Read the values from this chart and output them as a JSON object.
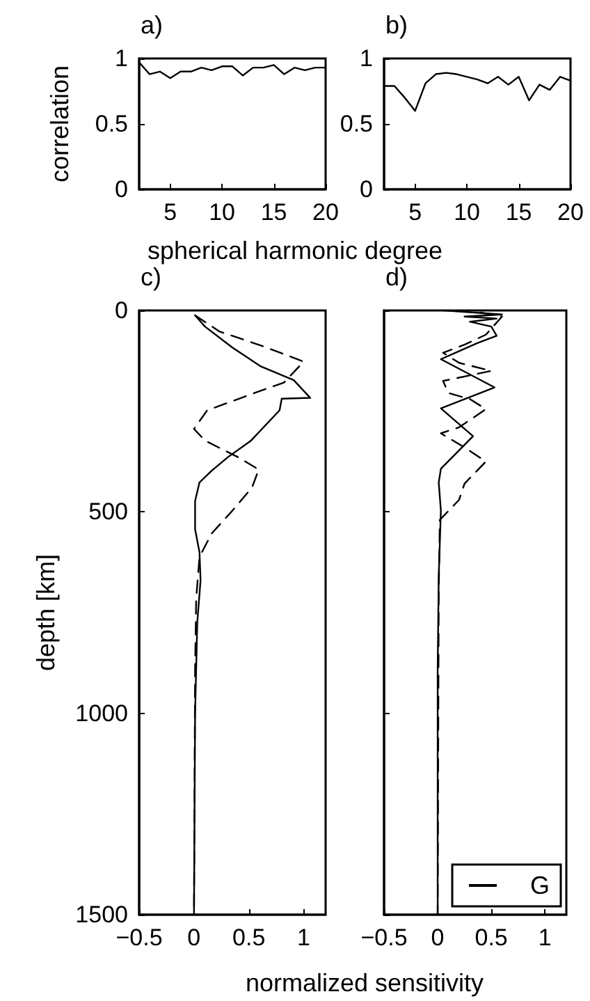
{
  "chart_data": [
    {
      "type": "line",
      "title": "a)",
      "ylabel": "correlation",
      "xlabel": "spherical harmonic degree",
      "xlim": [
        2,
        20
      ],
      "xticks": [
        5,
        10,
        15,
        20
      ],
      "ylim": [
        0,
        1
      ],
      "yticks": [
        0,
        0.5,
        1
      ],
      "grid": false,
      "legend": false,
      "marker": "none",
      "series": [
        {
          "color": "#000000",
          "x": [
            2,
            3,
            4,
            5,
            6,
            7,
            8,
            9,
            10,
            11,
            12,
            13,
            14,
            15,
            16,
            17,
            18,
            19,
            20
          ],
          "values": [
            0.97,
            0.88,
            0.9,
            0.85,
            0.9,
            0.9,
            0.93,
            0.91,
            0.94,
            0.94,
            0.87,
            0.93,
            0.93,
            0.95,
            0.88,
            0.93,
            0.91,
            0.93,
            0.93
          ]
        }
      ]
    },
    {
      "type": "line",
      "title": "b)",
      "xlim": [
        2,
        20
      ],
      "xticks": [
        5,
        10,
        15,
        20
      ],
      "ylim": [
        0,
        1
      ],
      "yticks": [
        0,
        0.5,
        1
      ],
      "grid": false,
      "legend": false,
      "marker": "none",
      "series": [
        {
          "color": "#000000",
          "x": [
            2,
            3,
            4,
            5,
            6,
            7,
            8,
            9,
            10,
            11,
            12,
            13,
            14,
            15,
            16,
            17,
            18,
            19,
            20
          ],
          "values": [
            0.79,
            0.79,
            0.7,
            0.6,
            0.81,
            0.88,
            0.89,
            0.88,
            0.86,
            0.84,
            0.81,
            0.86,
            0.8,
            0.86,
            0.68,
            0.8,
            0.76,
            0.86,
            0.83
          ]
        }
      ]
    },
    {
      "type": "line",
      "title": "c)",
      "ylabel": "depth [km]",
      "xlabel": "normalized sensitivity",
      "xlim": [
        -0.5,
        1.2
      ],
      "xticks": [
        {
          "value": -0.5,
          "label": "−0.5"
        },
        0,
        0.5,
        1
      ],
      "ylim": [
        1500,
        0
      ],
      "yticks": [
        0,
        500,
        1000,
        1500
      ],
      "grid": false,
      "legend": false,
      "marker": "none",
      "series": [
        {
          "color": "#000000",
          "line_style": "solid",
          "x": [
            0.01,
            0.1,
            0.35,
            0.61,
            0.91,
            1.06,
            0.8,
            0.78,
            0.52,
            0.31,
            0.16,
            0.05,
            0.01,
            0.01,
            0.05,
            0.06,
            0.03,
            0.01,
            0
          ],
          "values": [
            12,
            40,
            92,
            139,
            173,
            217,
            219,
            248,
            323,
            364,
            398,
            427,
            473,
            543,
            600,
            670,
            774,
            1000,
            1500
          ]
        },
        {
          "color": "#000000",
          "line_style": "dashed",
          "x": [
            0.01,
            0.23,
            0.61,
            1.0,
            0.82,
            0.52,
            0.12,
            0,
            0.1,
            0.4,
            0.59,
            0.53,
            0.35,
            0.16,
            0.05,
            0.02,
            0.01,
            0
          ],
          "values": [
            12,
            52,
            87,
            127,
            179,
            208,
            248,
            294,
            323,
            364,
            395,
            439,
            497,
            554,
            612,
            716,
            889,
            1500
          ]
        }
      ]
    },
    {
      "type": "line",
      "title": "d)",
      "xlim": [
        -0.5,
        1.2
      ],
      "xticks": [
        {
          "value": -0.5,
          "label": "−0.5"
        },
        0,
        0.5,
        1
      ],
      "ylim": [
        1500,
        0
      ],
      "yticks": [
        0,
        500,
        1000,
        1500
      ],
      "tick_labels": "x",
      "grid": false,
      "legend": "bottom right",
      "marker": "none",
      "series": [
        {
          "name": "G",
          "color": "#000000",
          "line_style": "solid",
          "x": [
            0.06,
            0.6,
            0.25,
            0.55,
            0.3,
            0.5,
            0.55,
            0.37,
            0.03,
            0.53,
            0.03,
            0.33,
            0.03,
            0.01,
            0.03,
            0.01,
            0,
            0
          ],
          "values": [
            0,
            10,
            15,
            20,
            28,
            40,
            63,
            81,
            121,
            191,
            243,
            312,
            393,
            427,
            497,
            658,
            889,
            1500
          ]
        },
        {
          "color": "#000000",
          "line_style": "dashed",
          "x": [
            0.4,
            0.6,
            0.45,
            0.25,
            0.05,
            0.2,
            0.5,
            0.05,
            0.1,
            0.3,
            0.45,
            0.2,
            0.03,
            0.25,
            0.45,
            0.25,
            0.2,
            0.02,
            0.01,
            0
          ],
          "values": [
            5,
            15,
            60,
            85,
            105,
            130,
            150,
            175,
            205,
            220,
            245,
            290,
            305,
            340,
            375,
            430,
            470,
            520,
            700,
            1500
          ]
        }
      ]
    }
  ]
}
